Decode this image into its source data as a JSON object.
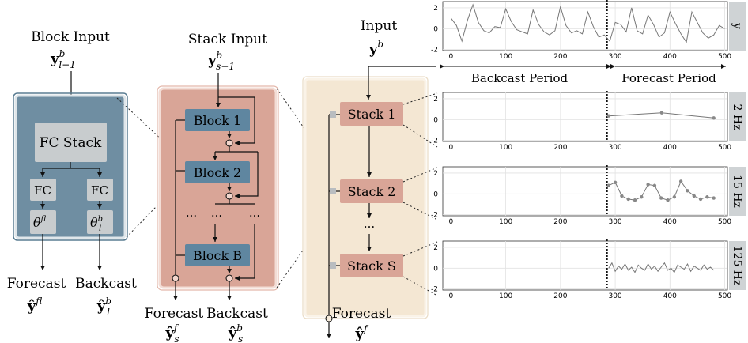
{
  "block_panel": {
    "input_label": "Block Input",
    "input_symbol": "y",
    "input_sup": "b",
    "input_sub": "l−1",
    "fc_stack": "FC Stack",
    "fc_left": "FC",
    "fc_right": "FC",
    "theta": "θ",
    "theta_left_sup": "f",
    "theta_right_sup": "b",
    "theta_sub": "l",
    "forecast_label": "Forecast",
    "backcast_label": "Backcast",
    "forecast_symbol": "ŷ",
    "forecast_sup": "f",
    "forecast_sub": "l",
    "backcast_symbol": "ŷ",
    "backcast_sup": "b",
    "backcast_sub": "l"
  },
  "stack_panel": {
    "input_label": "Stack Input",
    "input_symbol": "y",
    "input_sup": "b",
    "input_sub": "s−1",
    "block1": "Block 1",
    "block2": "Block 2",
    "blockB": "Block B",
    "dots": "···",
    "forecast_label": "Forecast",
    "backcast_label": "Backcast",
    "forecast_symbol": "ŷ",
    "forecast_sup": "f",
    "forecast_sub": "s",
    "backcast_symbol": "ŷ",
    "backcast_sup": "b",
    "backcast_sub": "s"
  },
  "model_panel": {
    "input_label": "Input",
    "input_symbol": "y",
    "input_sup": "b",
    "stack1": "Stack 1",
    "stack2": "Stack 2",
    "stackS": "Stack S",
    "dots": "···",
    "forecast_label": "Forecast",
    "forecast_symbol": "ŷ",
    "forecast_sup": "f"
  },
  "colors": {
    "block_bg": "#6f8ea2",
    "block_border": "#5a7d92",
    "block_inner": "#c8ccce",
    "stack_bg": "#d9a597",
    "stack_border": "#e8c9c0",
    "model_bg": "#f4e7d3",
    "model_border": "#eadcc6",
    "block_node": "#5f86a0",
    "stack_node": "#d9a597"
  },
  "periods": {
    "backcast": "Backcast Period",
    "forecast": "Forecast Period"
  },
  "chart_data": [
    {
      "type": "line",
      "panel_label": "y",
      "x_ticks": [
        0,
        100,
        200,
        300,
        400,
        500
      ],
      "y_ticks": [
        2,
        0,
        -2
      ],
      "xlim": [
        -15,
        505
      ],
      "ylim": [
        -2.1,
        2.6
      ],
      "grid": true,
      "divider_x": 285,
      "x": [
        0,
        10,
        20,
        30,
        40,
        50,
        60,
        70,
        80,
        90,
        100,
        110,
        120,
        130,
        140,
        150,
        160,
        170,
        180,
        190,
        200,
        210,
        220,
        230,
        240,
        250,
        260,
        270,
        280,
        290,
        300,
        310,
        320,
        330,
        340,
        350,
        360,
        370,
        380,
        390,
        400,
        410,
        420,
        430,
        440,
        450,
        460,
        470,
        480,
        490,
        500
      ],
      "values": [
        1.0,
        0.3,
        -1.2,
        0.8,
        2.3,
        0.6,
        -0.2,
        -0.4,
        0.2,
        0.1,
        1.9,
        0.7,
        -0.1,
        -0.3,
        -0.5,
        1.8,
        0.4,
        -0.3,
        -0.6,
        -0.2,
        2.1,
        0.3,
        -0.4,
        -0.2,
        -0.5,
        1.6,
        0.2,
        -0.8,
        -0.6,
        -1.2,
        0.6,
        0.4,
        -0.3,
        2.0,
        -0.2,
        -0.5,
        1.3,
        0.4,
        -0.8,
        -0.4,
        1.6,
        0.5,
        -0.5,
        -1.3,
        1.6,
        0.6,
        -0.4,
        -0.9,
        -0.6,
        0.3,
        0.0
      ]
    },
    {
      "type": "line",
      "panel_label": "2 Hz",
      "x_ticks": [
        0,
        100,
        200,
        300,
        400,
        500
      ],
      "y_ticks": [
        2,
        0,
        -2
      ],
      "xlim": [
        -15,
        505
      ],
      "ylim": [
        -2.1,
        2.6
      ],
      "grid": true,
      "divider_x": 285,
      "x": [
        288,
        385,
        480
      ],
      "values": [
        0.35,
        0.65,
        0.15
      ]
    },
    {
      "type": "line",
      "panel_label": "15 Hz",
      "x_ticks": [
        0,
        100,
        200,
        300,
        400,
        500
      ],
      "y_ticks": [
        2,
        0,
        -2
      ],
      "xlim": [
        -15,
        505
      ],
      "ylim": [
        -2.1,
        2.6
      ],
      "grid": true,
      "divider_x": 285,
      "x": [
        288,
        300,
        312,
        324,
        336,
        348,
        360,
        372,
        384,
        396,
        408,
        420,
        432,
        444,
        456,
        468,
        480
      ],
      "values": [
        0.8,
        1.1,
        -0.2,
        -0.5,
        -0.6,
        -0.3,
        0.9,
        0.8,
        -0.4,
        -0.6,
        -0.3,
        1.2,
        0.3,
        -0.2,
        -0.5,
        -0.3,
        -0.4
      ]
    },
    {
      "type": "line",
      "panel_label": "125 Hz",
      "x_ticks": [
        0,
        100,
        200,
        300,
        400,
        500
      ],
      "y_ticks": [
        2,
        0,
        -2
      ],
      "xlim": [
        -15,
        505
      ],
      "ylim": [
        -2.1,
        2.6
      ],
      "grid": true,
      "divider_x": 285,
      "x": [
        288,
        294,
        300,
        306,
        312,
        318,
        324,
        330,
        336,
        342,
        348,
        354,
        360,
        366,
        372,
        378,
        384,
        390,
        396,
        402,
        408,
        414,
        420,
        426,
        432,
        438,
        444,
        450,
        456,
        462,
        468,
        474,
        480
      ],
      "values": [
        0.0,
        0.5,
        -0.3,
        0.2,
        -0.1,
        0.4,
        -0.2,
        0.1,
        -0.4,
        0.3,
        0.0,
        -0.2,
        0.4,
        -0.1,
        0.2,
        -0.3,
        0.1,
        0.5,
        -0.2,
        0.0,
        -0.4,
        0.3,
        0.1,
        -0.1,
        0.4,
        -0.3,
        0.2,
        0.0,
        -0.2,
        0.3,
        -0.1,
        0.1,
        -0.2
      ]
    }
  ]
}
